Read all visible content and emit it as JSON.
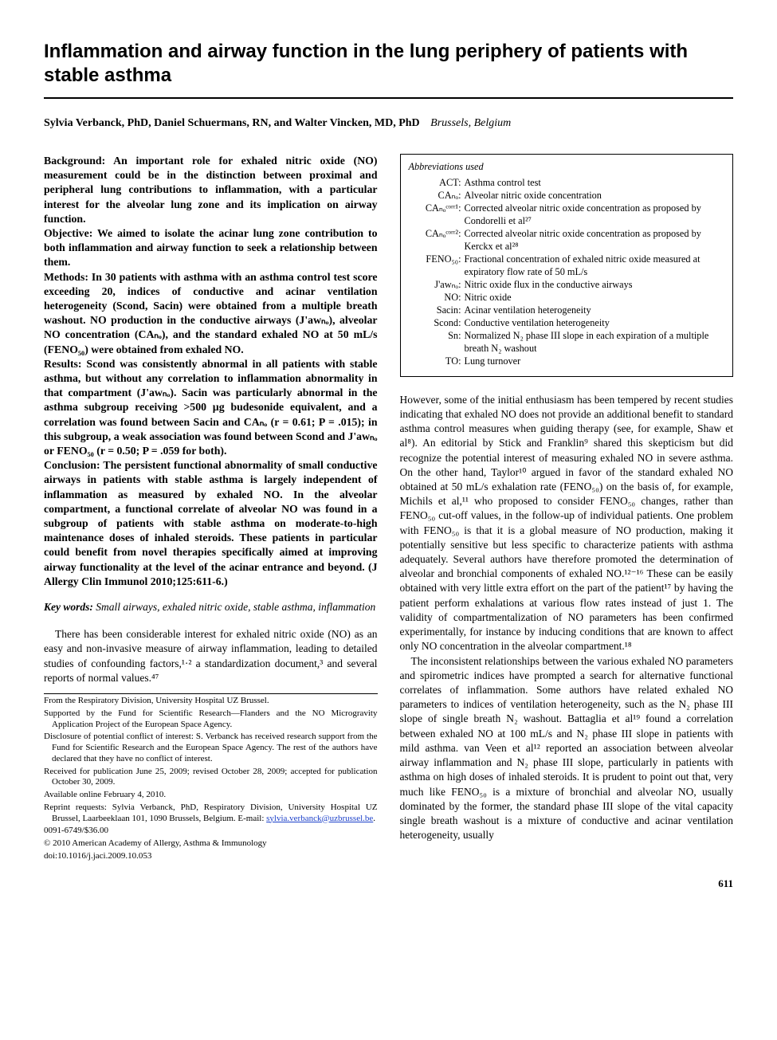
{
  "title": "Inflammation and airway function in the lung periphery of patients with stable asthma",
  "authors_html": "<b>Sylvia Verbanck, PhD, Daniel Schuermans, RN, and Walter Vincken, MD, PhD</b>",
  "affiliation": "Brussels, Belgium",
  "abstract": {
    "background": "Background: An important role for exhaled nitric oxide (NO) measurement could be in the distinction between proximal and peripheral lung contributions to inflammation, with a particular interest for the alveolar lung zone and its implication on airway function.",
    "objective": "Objective: We aimed to isolate the acinar lung zone contribution to both inflammation and airway function to seek a relationship between them.",
    "methods": "Methods: In 30 patients with asthma with an asthma control test score exceeding 20, indices of conductive and acinar ventilation heterogeneity (Scond, Sacin) were obtained from a multiple breath washout. NO production in the conductive airways (J'awₙₒ), alveolar NO concentration (CAₙₒ), and the standard exhaled NO at 50 mL/s (FENO₅₀) were obtained from exhaled NO.",
    "results": "Results: Scond was consistently abnormal in all patients with stable asthma, but without any correlation to inflammation abnormality in that compartment (J'awₙₒ). Sacin was particularly abnormal in the asthma subgroup receiving >500 µg budesonide equivalent, and a correlation was found between Sacin and CAₙₒ (r = 0.61; P = .015); in this subgroup, a weak association was found between Scond and J'awₙₒ or FENO₅₀ (r = 0.50; P = .059 for both).",
    "conclusion": "Conclusion: The persistent functional abnormality of small conductive airways in patients with stable asthma is largely independent of inflammation as measured by exhaled NO. In the alveolar compartment, a functional correlate of alveolar NO was found in a subgroup of patients with stable asthma on moderate-to-high maintenance doses of inhaled steroids. These patients in particular could benefit from novel therapies specifically aimed at improving airway functionality at the level of the acinar entrance and beyond. (J Allergy Clin Immunol 2010;125:611-6.)"
  },
  "keywords_label": "Key words:",
  "keywords": "Small airways, exhaled nitric oxide, stable asthma, inflammation",
  "intro_para": "There has been considerable interest for exhaled nitric oxide (NO) as an easy and non-invasive measure of airway inflammation, leading to detailed studies of confounding factors,¹·² a standardization document,³ and several reports of normal values.⁴⁷",
  "footnotes": {
    "from": "From the Respiratory Division, University Hospital UZ Brussel.",
    "supported": "Supported by the Fund for Scientific Research—Flanders and the NO Microgravity Application Project of the European Space Agency.",
    "disclosure": "Disclosure of potential conflict of interest: S. Verbanck has received research support from the Fund for Scientific Research and the European Space Agency. The rest of the authors have declared that they have no conflict of interest.",
    "received": "Received for publication June 25, 2009; revised October 28, 2009; accepted for publication October 30, 2009.",
    "available": "Available online February 4, 2010.",
    "reprint": "Reprint requests: Sylvia Verbanck, PhD, Respiratory Division, University Hospital UZ Brussel, Laarbeeklaan 101, 1090 Brussels, Belgium. E-mail: ",
    "email": "sylvia.verbanck@uzbrussel.be",
    "email_post": ".",
    "code": "0091-6749/$36.00",
    "copyright": "© 2010 American Academy of Allergy, Asthma & Immunology",
    "doi": "doi:10.1016/j.jaci.2009.10.053"
  },
  "abbr_title": "Abbreviations used",
  "abbr": [
    {
      "k": "ACT:",
      "v": "Asthma control test"
    },
    {
      "k": "CAₙₒ:",
      "v": "Alveolar nitric oxide concentration"
    },
    {
      "k": "CAₙₒᶜᵒʳʳ¹:",
      "v": "Corrected alveolar nitric oxide concentration as proposed by Condorelli et al²⁷"
    },
    {
      "k": "CAₙₒᶜᵒʳʳ²:",
      "v": "Corrected alveolar nitric oxide concentration as proposed by Kerckx et al²⁸"
    },
    {
      "k": "FENO₅₀:",
      "v": "Fractional concentration of exhaled nitric oxide measured at expiratory flow rate of 50 mL/s"
    },
    {
      "k": "J'awₙₒ:",
      "v": "Nitric oxide flux in the conductive airways"
    },
    {
      "k": "NO:",
      "v": "Nitric oxide"
    },
    {
      "k": "Sacin:",
      "v": "Acinar ventilation heterogeneity"
    },
    {
      "k": "Scond:",
      "v": "Conductive ventilation heterogeneity"
    },
    {
      "k": "Sn:",
      "v": "Normalized N₂ phase III slope in each expiration of a multiple breath N₂ washout"
    },
    {
      "k": "TO:",
      "v": "Lung turnover"
    }
  ],
  "col2_p1": "However, some of the initial enthusiasm has been tempered by recent studies indicating that exhaled NO does not provide an additional benefit to standard asthma control measures when guiding therapy (see, for example, Shaw et al⁸). An editorial by Stick and Franklin⁹ shared this skepticism but did recognize the potential interest of measuring exhaled NO in severe asthma. On the other hand, Taylor¹⁰ argued in favor of the standard exhaled NO obtained at 50 mL/s exhalation rate (FENO₅₀) on the basis of, for example, Michils et al,¹¹ who proposed to consider FENO₅₀ changes, rather than FENO₅₀ cut-off values, in the follow-up of individual patients. One problem with FENO₅₀ is that it is a global measure of NO production, making it potentially sensitive but less specific to characterize patients with asthma adequately. Several authors have therefore promoted the determination of alveolar and bronchial components of exhaled NO.¹²⁻¹⁶ These can be easily obtained with very little extra effort on the part of the patient¹⁷ by having the patient perform exhalations at various flow rates instead of just 1. The validity of compartmentalization of NO parameters has been confirmed experimentally, for instance by inducing conditions that are known to affect only NO concentration in the alveolar compartment.¹⁸",
  "col2_p2": "The inconsistent relationships between the various exhaled NO parameters and spirometric indices have prompted a search for alternative functional correlates of inflammation. Some authors have related exhaled NO parameters to indices of ventilation heterogeneity, such as the N₂ phase III slope of single breath N₂ washout. Battaglia et al¹⁹ found a correlation between exhaled NO at 100 mL/s and N₂ phase III slope in patients with mild asthma. van Veen et al¹² reported an association between alveolar airway inflammation and N₂ phase III slope, particularly in patients with asthma on high doses of inhaled steroids. It is prudent to point out that, very much like FENO₅₀ is a mixture of bronchial and alveolar NO, usually dominated by the former, the standard phase III slope of the vital capacity single breath washout is a mixture of conductive and acinar ventilation heterogeneity, usually",
  "page_number": "611"
}
